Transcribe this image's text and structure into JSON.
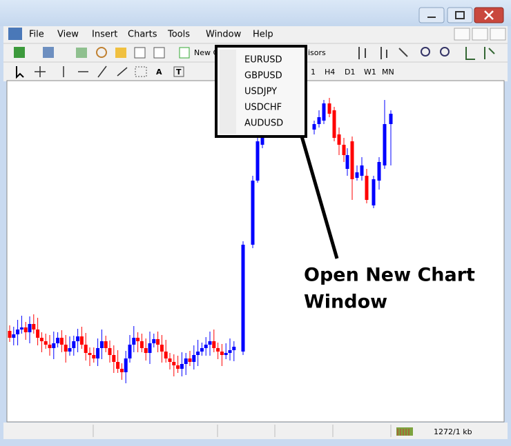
{
  "window": {
    "menu": [
      "File",
      "View",
      "Insert",
      "Charts",
      "Tools",
      "Window",
      "Help"
    ]
  },
  "toolbar": {
    "new_chart": "New C",
    "expert_advisors": "isors",
    "timeframes": [
      "1",
      "H4",
      "D1",
      "W1",
      "MN"
    ]
  },
  "drawing_tools": {
    "text": "A",
    "text_label": "T"
  },
  "symbol_menu": {
    "items": [
      "EURUSD",
      "GBPUSD",
      "USDJPY",
      "USDCHF",
      "AUDUSD"
    ]
  },
  "annotation": [
    "Open New Chart",
    "Window"
  ],
  "status_bar": {
    "memory": "1272/1 kb"
  }
}
